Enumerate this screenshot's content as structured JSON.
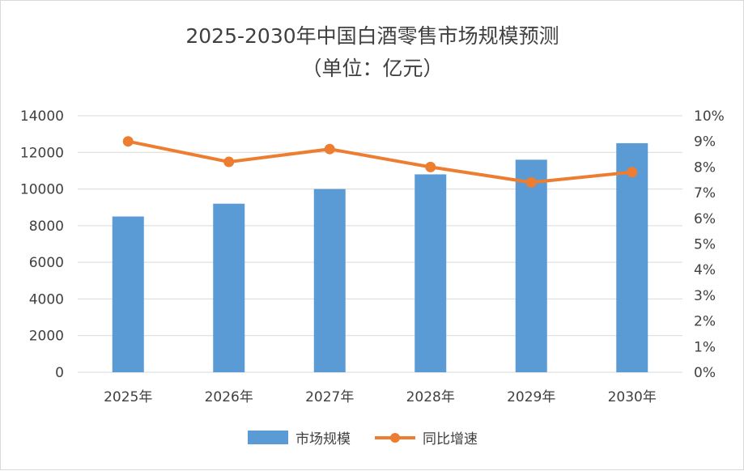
{
  "chart_data": {
    "type": "bar+line",
    "title": "2025-2030年中国白酒零售市场规模预测",
    "subtitle": "（单位：亿元）",
    "categories": [
      "2025年",
      "2026年",
      "2027年",
      "2028年",
      "2029年",
      "2030年"
    ],
    "series": [
      {
        "name": "市场规模",
        "type": "bar",
        "axis": "left",
        "color": "#5b9bd5",
        "values": [
          8500,
          9200,
          10000,
          10800,
          11600,
          12500
        ]
      },
      {
        "name": "同比增速",
        "type": "line",
        "axis": "right",
        "color": "#ed7d31",
        "values": [
          9.0,
          8.2,
          8.7,
          8.0,
          7.4,
          7.8
        ]
      }
    ],
    "y_left": {
      "min": 0,
      "max": 14000,
      "step": 2000,
      "ticks": [
        "0",
        "2000",
        "4000",
        "6000",
        "8000",
        "10000",
        "12000",
        "14000"
      ]
    },
    "y_right": {
      "min": 0,
      "max": 10,
      "step": 1,
      "ticks": [
        "0%",
        "1%",
        "2%",
        "3%",
        "4%",
        "5%",
        "6%",
        "7%",
        "8%",
        "9%",
        "10%"
      ]
    },
    "grid": true,
    "legend_position": "bottom"
  }
}
